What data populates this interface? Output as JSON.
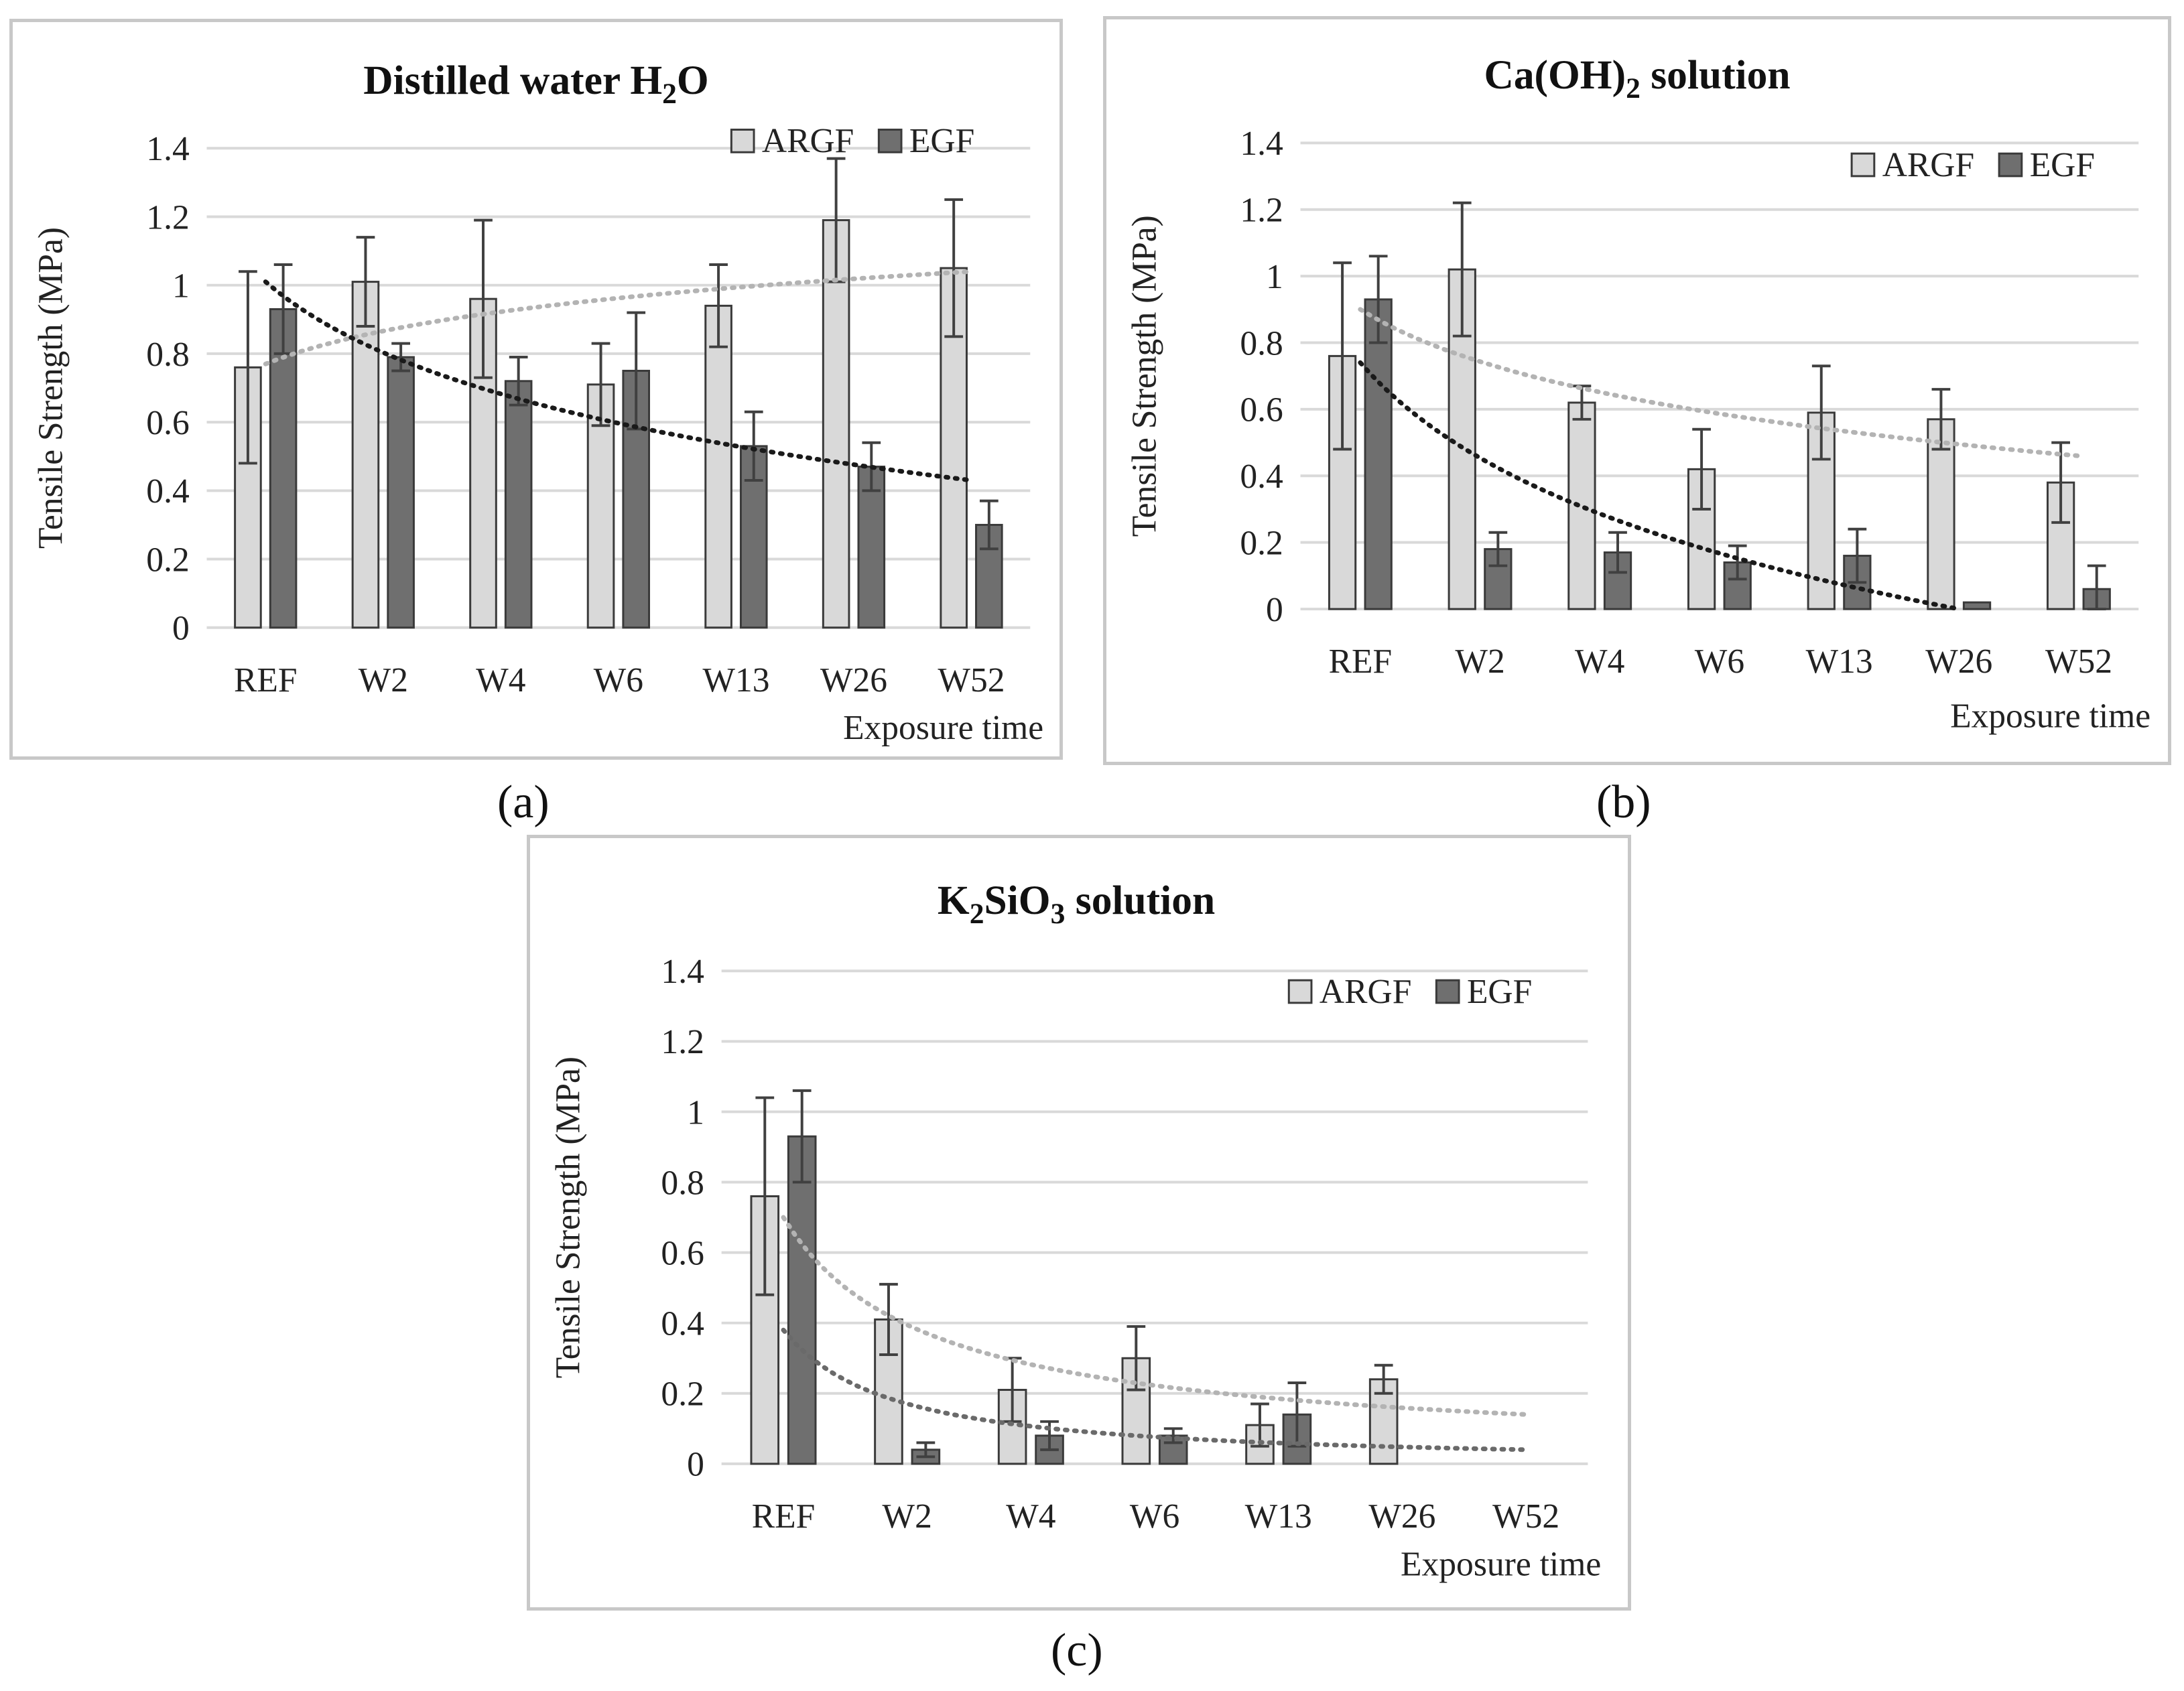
{
  "colors": {
    "argf": "#d9d9d9",
    "egf": "#6f6f6f",
    "bar_stroke": "#3a3a3a",
    "trend_argf": "#b3b3b3",
    "trend_egf": "#1a1a1a",
    "trend_egf_c": "#6a6a6a",
    "grid": "#d9d9d9",
    "error_bar": "#404040"
  },
  "chart_data": [
    {
      "type": "bar",
      "title": {
        "main": "Distilled water H",
        "sub": "2",
        "tail": "O"
      },
      "panel_label": "(a)",
      "xlabel": "Exposure time",
      "ylabel": "Tensile Strength (MPa)",
      "ylim": [
        0,
        1.4
      ],
      "yticks": [
        "0",
        "0.2",
        "0.4",
        "0.6",
        "0.8",
        "1",
        "1.2",
        "1.4"
      ],
      "legend_position": "top-right",
      "categories": [
        "REF",
        "W2",
        "W4",
        "W6",
        "W13",
        "W26",
        "W52"
      ],
      "series": [
        {
          "name": "ARGF",
          "values": [
            0.76,
            1.01,
            0.96,
            0.71,
            0.94,
            1.19,
            1.05
          ],
          "errors": [
            0.28,
            0.13,
            0.23,
            0.12,
            0.12,
            0.18,
            0.2
          ]
        },
        {
          "name": "EGF",
          "values": [
            0.93,
            0.79,
            0.72,
            0.75,
            0.53,
            0.47,
            0.3
          ],
          "errors": [
            0.13,
            0.04,
            0.07,
            0.17,
            0.1,
            0.07,
            0.07
          ]
        }
      ],
      "trendlines": [
        {
          "series": "ARGF",
          "type": "logarithmic",
          "start": 0.77,
          "end": 1.04
        },
        {
          "series": "EGF",
          "type": "logarithmic",
          "start": 1.01,
          "end": 0.43
        }
      ]
    },
    {
      "type": "bar",
      "title": {
        "main": "Ca(OH)",
        "sub": "2",
        "tail": " solution"
      },
      "panel_label": "(b)",
      "xlabel": "Exposure time",
      "ylabel": "Tensile Strength (MPa)",
      "ylim": [
        0,
        1.4
      ],
      "yticks": [
        "0",
        "0.2",
        "0.4",
        "0.6",
        "0.8",
        "1",
        "1.2",
        "1.4"
      ],
      "legend_position": "top-right",
      "categories": [
        "REF",
        "W2",
        "W4",
        "W6",
        "W13",
        "W26",
        "W52"
      ],
      "series": [
        {
          "name": "ARGF",
          "values": [
            0.76,
            1.02,
            0.62,
            0.42,
            0.59,
            0.57,
            0.38
          ],
          "errors": [
            0.28,
            0.2,
            0.05,
            0.12,
            0.14,
            0.09,
            0.12
          ]
        },
        {
          "name": "EGF",
          "values": [
            0.93,
            0.18,
            0.17,
            0.14,
            0.16,
            0.02,
            0.06
          ],
          "errors": [
            0.13,
            0.05,
            0.06,
            0.05,
            0.08,
            0.0,
            0.07
          ]
        }
      ],
      "trendlines": [
        {
          "series": "ARGF",
          "type": "logarithmic",
          "start": 0.9,
          "end": 0.46
        },
        {
          "series": "EGF",
          "type": "logarithmic",
          "start": 0.74,
          "end": 0.0,
          "end_category": 5
        }
      ]
    },
    {
      "type": "bar",
      "title": {
        "main": "K",
        "sub": "2",
        "tail": "SiO",
        "sub2": "3",
        "tail2": " solution"
      },
      "panel_label": "(c)",
      "xlabel": "Exposure time",
      "ylabel": "Tensile Strength (MPa)",
      "ylim": [
        0,
        1.4
      ],
      "yticks": [
        "0",
        "0.2",
        "0.4",
        "0.6",
        "0.8",
        "1",
        "1.2",
        "1.4"
      ],
      "legend_position": "top-right",
      "categories": [
        "REF",
        "W2",
        "W4",
        "W6",
        "W13",
        "W26",
        "W52"
      ],
      "series": [
        {
          "name": "ARGF",
          "values": [
            0.76,
            0.41,
            0.21,
            0.3,
            0.11,
            0.24,
            null
          ],
          "errors": [
            0.28,
            0.1,
            0.09,
            0.09,
            0.06,
            0.04,
            null
          ]
        },
        {
          "name": "EGF",
          "values": [
            0.93,
            0.04,
            0.08,
            0.08,
            0.14,
            null,
            null
          ],
          "errors": [
            0.13,
            0.02,
            0.04,
            0.02,
            0.09,
            null,
            null
          ]
        }
      ],
      "trendlines": [
        {
          "series": "ARGF",
          "type": "power",
          "start": 0.7,
          "end": 0.14
        },
        {
          "series": "EGF",
          "type": "power",
          "start": 0.38,
          "end": 0.04
        }
      ]
    }
  ]
}
